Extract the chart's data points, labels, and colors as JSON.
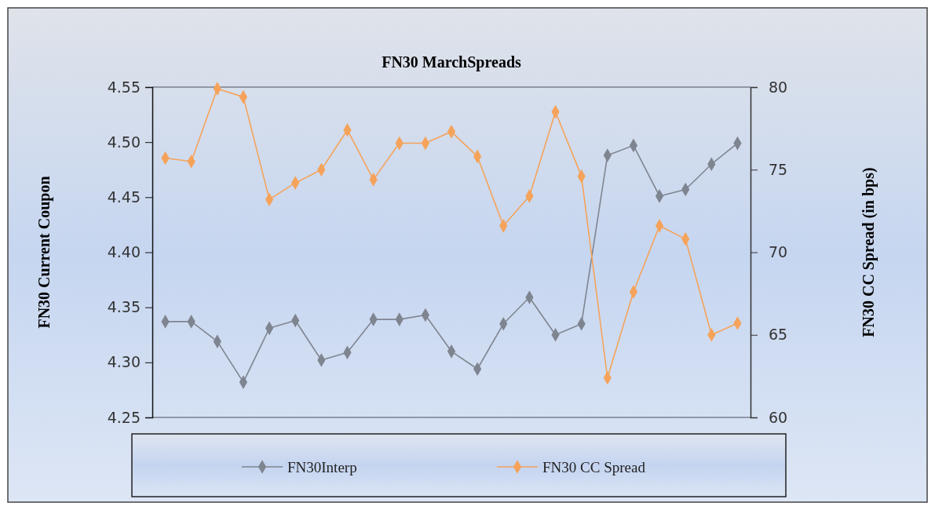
{
  "chart_data": {
    "type": "line",
    "title": "FN30 MarchSpreads",
    "ylabel": "FN30 Current Coupon",
    "y2label": "FN30 CC Spread (in bps)",
    "categories": [
      null,
      null,
      null,
      null,
      null,
      null,
      null,
      null,
      null,
      null,
      null,
      null,
      null,
      null,
      null,
      null,
      null,
      null,
      null,
      null,
      null,
      null,
      null
    ],
    "series": [
      {
        "name": "FN30Interp",
        "color": "#7f8590",
        "values": [
          4.337,
          4.337,
          4.319,
          4.282,
          4.331,
          4.338,
          4.302,
          4.309,
          4.339,
          4.339,
          4.343,
          4.31,
          4.294,
          4.335,
          4.359,
          4.325,
          4.335,
          4.488,
          4.497,
          4.451,
          4.457,
          4.48,
          4.499
        ]
      },
      {
        "name": "FN30 CC Spread",
        "color": "#f5a35a",
        "axis": "y2",
        "values": [
          75.7,
          75.5,
          79.9,
          79.4,
          73.2,
          74.2,
          75.0,
          77.4,
          74.4,
          76.6,
          76.6,
          77.3,
          75.8,
          71.6,
          73.4,
          78.5,
          74.6,
          62.4,
          67.6,
          71.6,
          70.8,
          65.0,
          65.7
        ]
      }
    ],
    "ylim": [
      4.25,
      4.55
    ],
    "yticks": [
      {
        "value": 4.25,
        "label": "4.25"
      },
      {
        "value": 4.3,
        "label": "4.30"
      },
      {
        "value": 4.35,
        "label": "4.35"
      },
      {
        "value": 4.4,
        "label": "4.40"
      },
      {
        "value": 4.45,
        "label": "4.45"
      },
      {
        "value": 4.5,
        "label": "4.50"
      },
      {
        "value": 4.55,
        "label": "4.55"
      }
    ],
    "y2lim": [
      60,
      80
    ],
    "y2ticks": [
      60,
      65,
      70,
      75,
      80
    ],
    "grid": false,
    "legend": "bottom",
    "marker": "diamond",
    "line_style": "solid",
    "tick_labels": "y"
  }
}
